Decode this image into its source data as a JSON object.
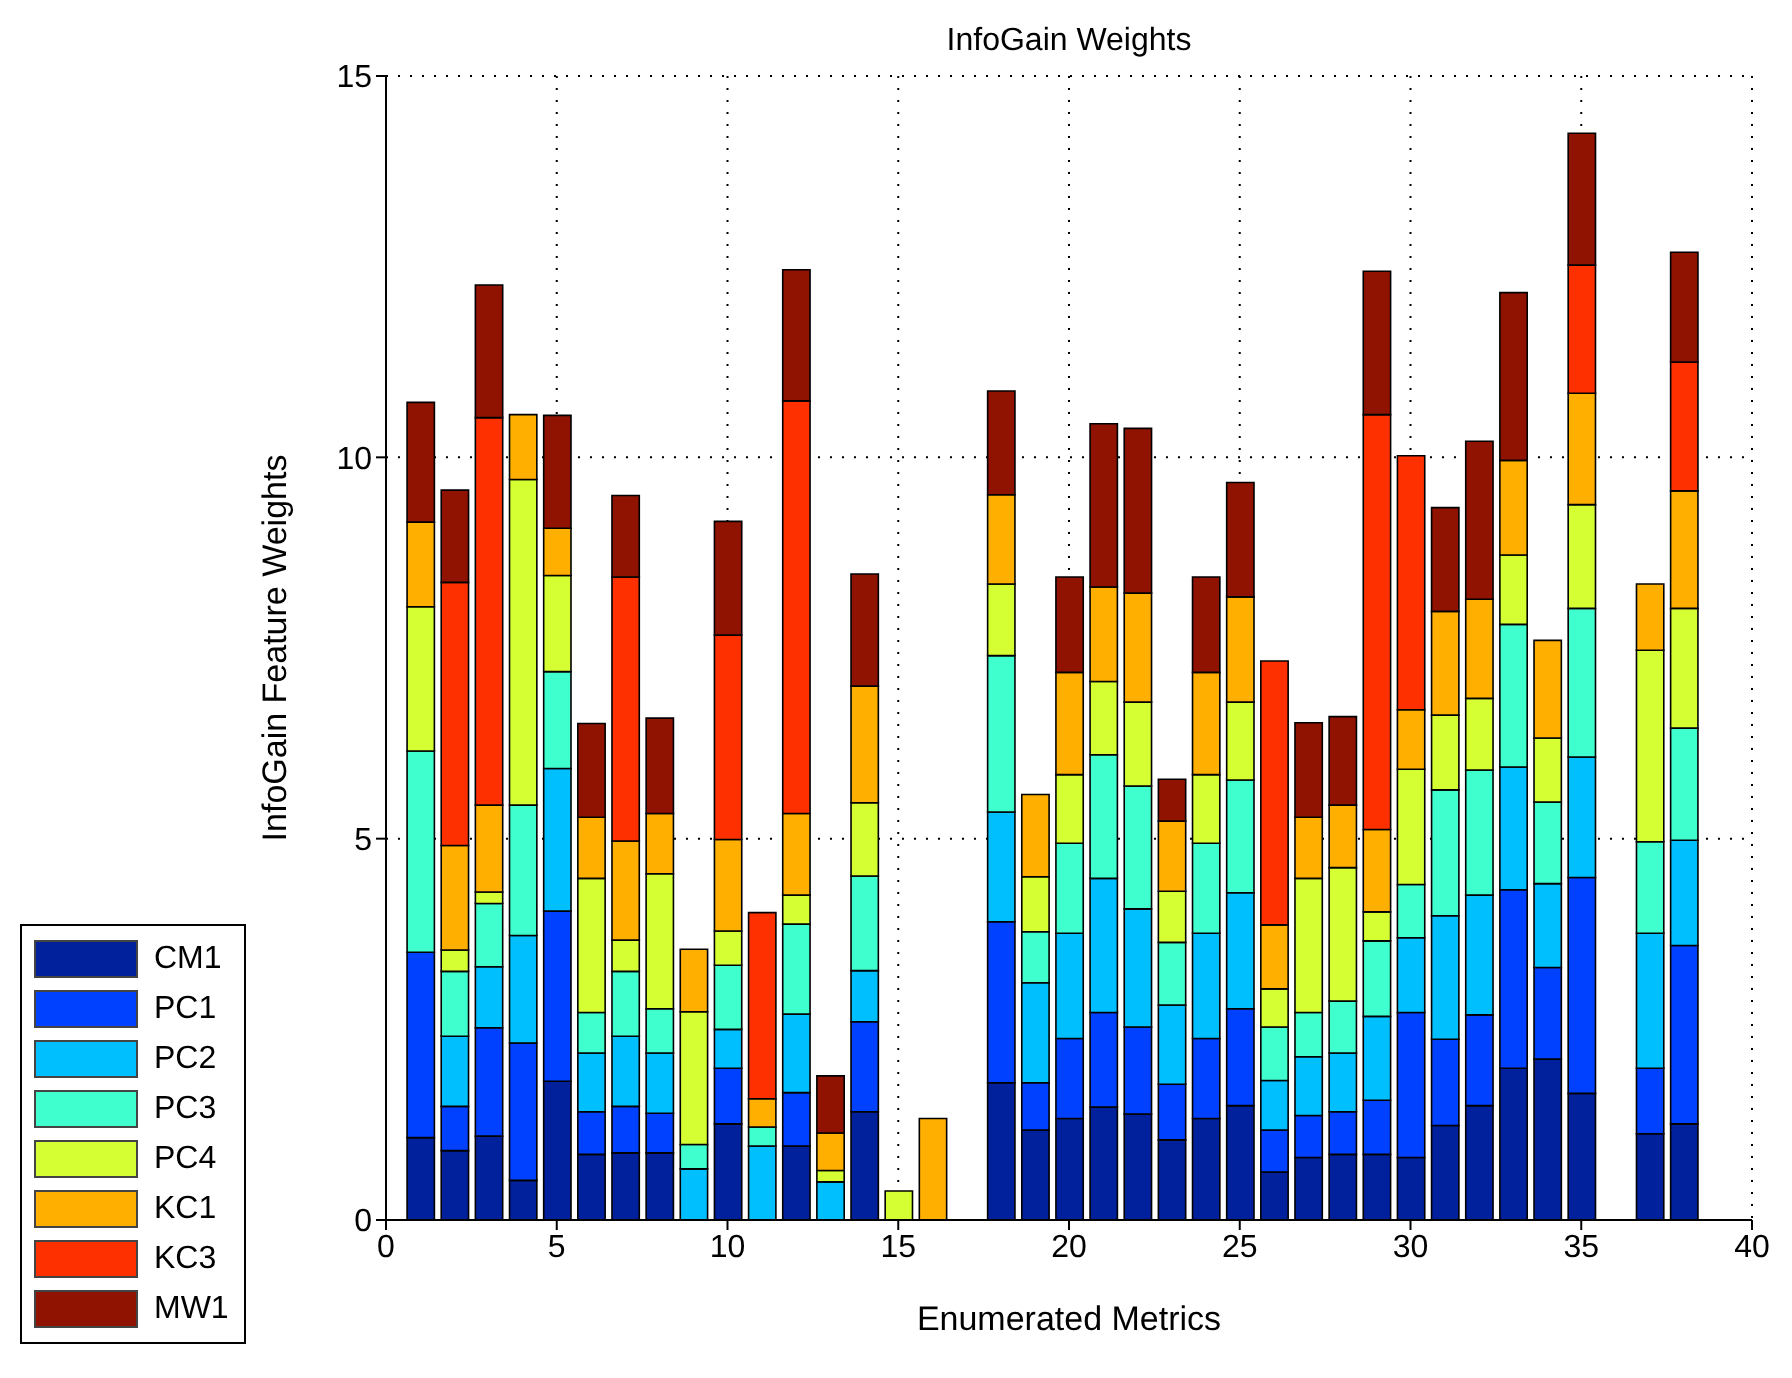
{
  "chart_data": {
    "type": "bar",
    "title": "InfoGain Weights",
    "xlabel": "Enumerated Metrics",
    "ylabel": "InfoGain Feature Weights",
    "stacked": true,
    "x": [
      1,
      2,
      3,
      4,
      5,
      6,
      7,
      8,
      9,
      10,
      11,
      12,
      13,
      14,
      15,
      16,
      18,
      19,
      20,
      21,
      22,
      23,
      24,
      25,
      26,
      27,
      28,
      29,
      30,
      31,
      32,
      33,
      34,
      35,
      37,
      38
    ],
    "series": [
      {
        "name": "CM1",
        "color": "#00209c",
        "values": [
          1.08,
          0.91,
          1.1,
          0.52,
          1.82,
          0.86,
          0.88,
          0.88,
          0,
          1.26,
          0,
          0.97,
          0,
          1.42,
          0,
          0,
          1.8,
          1.18,
          1.33,
          1.48,
          1.39,
          1.05,
          1.33,
          1.5,
          0.63,
          0.82,
          0.86,
          0.86,
          0.82,
          1.24,
          1.5,
          1.99,
          2.11,
          1.66,
          1.13,
          1.26
        ]
      },
      {
        "name": "PC1",
        "color": "#0040ff",
        "values": [
          2.43,
          0.58,
          1.42,
          1.8,
          2.23,
          0.56,
          0.61,
          0.52,
          0,
          0.73,
          0,
          0.7,
          0,
          1.18,
          0,
          0,
          2.11,
          0.62,
          1.05,
          1.24,
          1.14,
          0.73,
          1.05,
          1.27,
          0.55,
          0.55,
          0.56,
          0.71,
          1.9,
          1.13,
          1.19,
          2.34,
          1.2,
          2.83,
          0.86,
          2.34
        ]
      },
      {
        "name": "PC2",
        "color": "#00bfff",
        "values": [
          0,
          0.92,
          0.8,
          1.41,
          1.87,
          0.77,
          0.92,
          0.79,
          0.67,
          0.51,
          0.97,
          1.03,
          0.5,
          0.67,
          0,
          0,
          1.44,
          1.31,
          1.38,
          1.76,
          1.55,
          1.04,
          1.38,
          1.52,
          0.65,
          0.77,
          0.77,
          1.1,
          0.98,
          1.62,
          1.57,
          1.61,
          1.1,
          1.58,
          1.77,
          1.38
        ]
      },
      {
        "name": "PC3",
        "color": "#40ffcf",
        "values": [
          2.64,
          0.85,
          0.83,
          1.71,
          1.27,
          0.53,
          0.85,
          0.58,
          0.32,
          0.84,
          0.25,
          1.18,
          0,
          1.24,
          0,
          0,
          2.05,
          0.67,
          1.18,
          1.62,
          1.61,
          0.82,
          1.18,
          1.48,
          0.7,
          0.58,
          0.68,
          0.99,
          0.7,
          1.65,
          1.64,
          1.87,
          1.07,
          1.95,
          1.2,
          1.47
        ]
      },
      {
        "name": "PC4",
        "color": "#d6ff33",
        "values": [
          1.89,
          0.28,
          0.15,
          4.27,
          1.26,
          1.76,
          0.41,
          1.77,
          1.74,
          0.45,
          0,
          0.38,
          0.15,
          0.96,
          0.38,
          0,
          0.94,
          0.72,
          0.9,
          0.96,
          1.1,
          0.67,
          0.9,
          1.02,
          0.5,
          1.76,
          1.75,
          0.38,
          1.51,
          0.98,
          0.94,
          0.91,
          0.84,
          1.36,
          2.51,
          1.57
        ]
      },
      {
        "name": "KC1",
        "color": "#ffaf00",
        "values": [
          1.11,
          1.37,
          1.14,
          0.85,
          0.62,
          0.8,
          1.3,
          0.79,
          0.82,
          1.2,
          0.37,
          1.07,
          0.49,
          1.53,
          0,
          1.33,
          1.17,
          1.08,
          1.34,
          1.24,
          1.43,
          0.92,
          1.34,
          1.38,
          0.84,
          0.8,
          0.82,
          1.08,
          0.78,
          1.36,
          1.3,
          1.24,
          1.28,
          1.46,
          0.87,
          1.54
        ]
      },
      {
        "name": "KC3",
        "color": "#ff3000",
        "values": [
          0,
          3.45,
          5.08,
          0,
          0,
          0,
          3.46,
          0,
          0,
          2.68,
          2.44,
          5.41,
          0,
          0,
          0,
          0,
          0,
          0,
          0,
          0,
          0,
          0,
          0,
          0,
          3.46,
          0,
          0,
          5.44,
          3.33,
          0,
          0,
          0,
          0,
          1.68,
          0,
          1.69
        ]
      },
      {
        "name": "MW1",
        "color": "#8f1300",
        "values": [
          1.57,
          1.21,
          1.74,
          0,
          1.48,
          1.23,
          1.07,
          1.25,
          0,
          1.49,
          0,
          1.72,
          0.75,
          1.47,
          0,
          0,
          1.36,
          0,
          1.25,
          2.14,
          2.16,
          0.55,
          1.25,
          1.5,
          0,
          1.24,
          1.16,
          1.88,
          0,
          1.36,
          2.07,
          2.2,
          0,
          1.73,
          0,
          1.44
        ]
      }
    ],
    "xlim": [
      0,
      40
    ],
    "xticks": [
      0,
      5,
      10,
      15,
      20,
      25,
      30,
      35,
      40
    ],
    "ylim": [
      0,
      15
    ],
    "yticks": [
      0,
      5,
      10,
      15
    ],
    "grid": true,
    "legend": "bottom left"
  }
}
